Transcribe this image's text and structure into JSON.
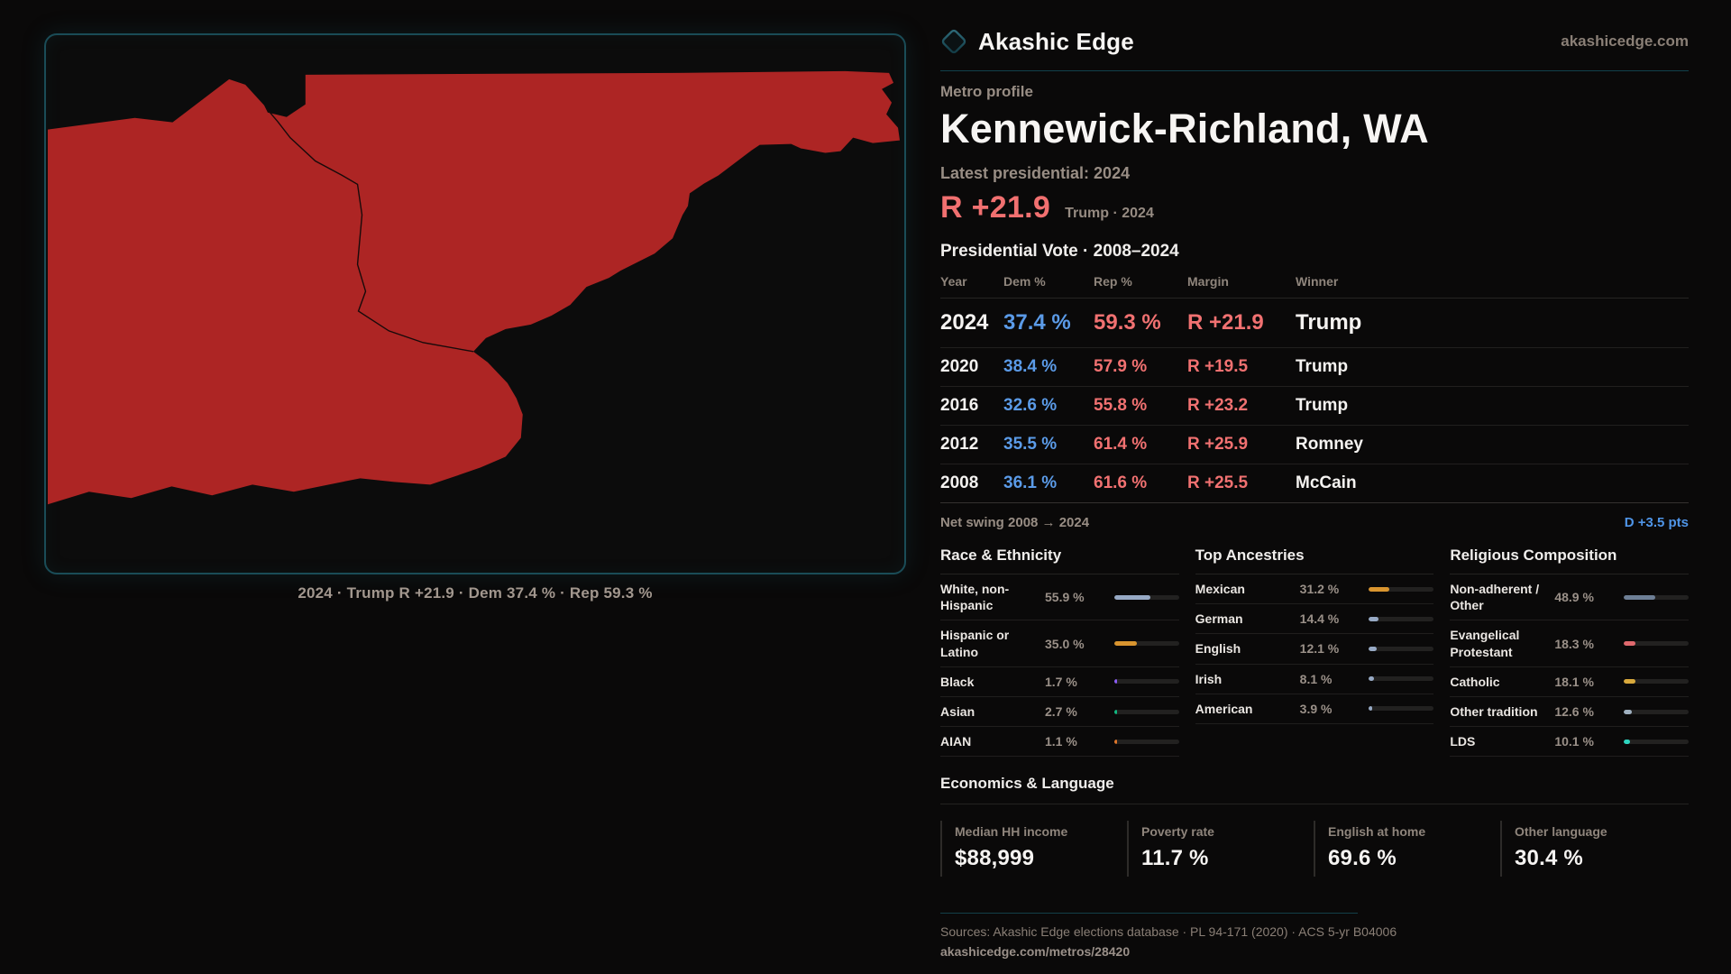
{
  "brand": {
    "name": "Akashic Edge",
    "site": "akashicedge.com"
  },
  "colors": {
    "accent_teal": "#1a4c57",
    "map_red": "#ad2524",
    "dem_blue": "#5b9be8",
    "rep_red": "#f17171",
    "swing_blue": "#4f95e8"
  },
  "map": {
    "caption": "2024 · Trump R +21.9 · Dem 37.4 % · Rep 59.3 %"
  },
  "profile": {
    "kicker": "Metro profile",
    "title": "Kennewick-Richland, WA",
    "latest_label": "Latest presidential: 2024",
    "headline_margin": "R +21.9",
    "headline_note": "Trump · 2024"
  },
  "vote_table": {
    "title": "Presidential Vote · 2008–2024",
    "columns": [
      "Year",
      "Dem %",
      "Rep %",
      "Margin",
      "Winner"
    ],
    "rows": [
      {
        "year": "2024",
        "dem": "37.4 %",
        "rep": "59.3 %",
        "margin": "R +21.9",
        "winner": "Trump"
      },
      {
        "year": "2020",
        "dem": "38.4 %",
        "rep": "57.9 %",
        "margin": "R +19.5",
        "winner": "Trump"
      },
      {
        "year": "2016",
        "dem": "32.6 %",
        "rep": "55.8 %",
        "margin": "R +23.2",
        "winner": "Trump"
      },
      {
        "year": "2012",
        "dem": "35.5 %",
        "rep": "61.4 %",
        "margin": "R +25.9",
        "winner": "Romney"
      },
      {
        "year": "2008",
        "dem": "36.1 %",
        "rep": "61.6 %",
        "margin": "R +25.5",
        "winner": "McCain"
      }
    ],
    "net_swing_label": "Net swing 2008 → 2024",
    "net_swing_value": "D +3.5 pts"
  },
  "race": {
    "title": "Race & Ethnicity",
    "rows": [
      {
        "label": "White, non-Hispanic",
        "value": "55.9 %",
        "pct": 55.9,
        "color": "#97a9c4"
      },
      {
        "label": "Hispanic or Latino",
        "value": "35.0 %",
        "pct": 35.0,
        "color": "#d9952f"
      },
      {
        "label": "Black",
        "value": "1.7 %",
        "pct": 1.7,
        "color": "#8b5cf6"
      },
      {
        "label": "Asian",
        "value": "2.7 %",
        "pct": 2.7,
        "color": "#10b981"
      },
      {
        "label": "AIAN",
        "value": "1.1 %",
        "pct": 1.1,
        "color": "#e0762a"
      }
    ]
  },
  "ancestries": {
    "title": "Top Ancestries",
    "rows": [
      {
        "label": "Mexican",
        "value": "31.2 %",
        "pct": 31.2,
        "color": "#d9952f"
      },
      {
        "label": "German",
        "value": "14.4 %",
        "pct": 14.4,
        "color": "#97a9c4"
      },
      {
        "label": "English",
        "value": "12.1 %",
        "pct": 12.1,
        "color": "#97a9c4"
      },
      {
        "label": "Irish",
        "value": "8.1 %",
        "pct": 8.1,
        "color": "#97a9c4"
      },
      {
        "label": "American",
        "value": "3.9 %",
        "pct": 3.9,
        "color": "#97a9c4"
      }
    ]
  },
  "religion": {
    "title": "Religious Composition",
    "rows": [
      {
        "label": "Non-adherent / Other",
        "value": "48.9 %",
        "pct": 48.9,
        "color": "#6e7f96"
      },
      {
        "label": "Evangelical Protestant",
        "value": "18.3 %",
        "pct": 18.3,
        "color": "#e0696e"
      },
      {
        "label": "Catholic",
        "value": "18.1 %",
        "pct": 18.1,
        "color": "#d9a93c"
      },
      {
        "label": "Other tradition",
        "value": "12.6 %",
        "pct": 12.6,
        "color": "#9fb0c0"
      },
      {
        "label": "LDS",
        "value": "10.1 %",
        "pct": 10.1,
        "color": "#2dd4bf"
      }
    ]
  },
  "economics": {
    "title": "Economics & Language",
    "stats": [
      {
        "label": "Median HH income",
        "value": "$88,999"
      },
      {
        "label": "Poverty rate",
        "value": "11.7 %"
      },
      {
        "label": "English at home",
        "value": "69.6 %"
      },
      {
        "label": "Other language",
        "value": "30.4 %"
      }
    ]
  },
  "footer": {
    "sources": "Sources: Akashic Edge elections database · PL 94-171 (2020) · ACS 5-yr B04006",
    "url": "akashicedge.com/metros/28420"
  }
}
